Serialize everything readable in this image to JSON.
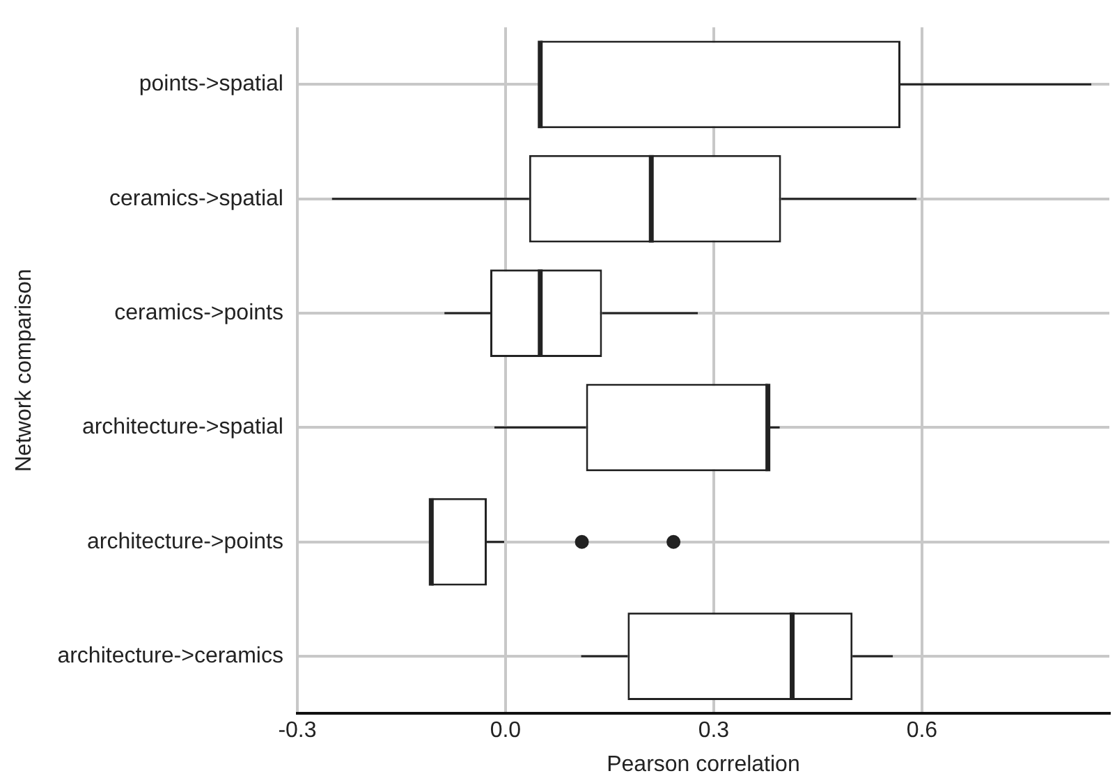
{
  "chart_data": {
    "type": "box",
    "orientation": "horizontal",
    "xlabel": "Pearson correlation",
    "ylabel": "Network comparison",
    "categories": [
      "points->spatial",
      "ceramics->spatial",
      "ceramics->points",
      "architecture->spatial",
      "architecture->points",
      "architecture->ceramics"
    ],
    "boxes": [
      {
        "low": 0.05,
        "q1": 0.05,
        "median": 0.05,
        "q3": 0.569,
        "high": 0.844
      },
      {
        "low": -0.25,
        "q1": 0.034,
        "median": 0.21,
        "q3": 0.397,
        "high": 0.592
      },
      {
        "low": -0.088,
        "q1": -0.022,
        "median": 0.05,
        "q3": 0.139,
        "high": 0.277
      },
      {
        "low": -0.016,
        "q1": 0.116,
        "median": 0.378,
        "q3": 0.378,
        "high": 0.395
      },
      {
        "low": -0.107,
        "q1": -0.107,
        "median": -0.107,
        "q3": -0.027,
        "high": -0.002,
        "outliers": [
          0.11,
          0.242
        ]
      },
      {
        "low": 0.109,
        "q1": 0.176,
        "median": 0.413,
        "q3": 0.5,
        "high": 0.558
      }
    ],
    "xlim": [
      -0.3,
      0.87
    ],
    "xticks": [
      {
        "value": -0.3,
        "label": "-0.3"
      },
      {
        "value": 0,
        "label": "0.0"
      },
      {
        "value": 0.3,
        "label": "0.3"
      },
      {
        "value": 0.6,
        "label": "0.6"
      }
    ],
    "grid": true,
    "legend": false,
    "color": "#222222"
  }
}
